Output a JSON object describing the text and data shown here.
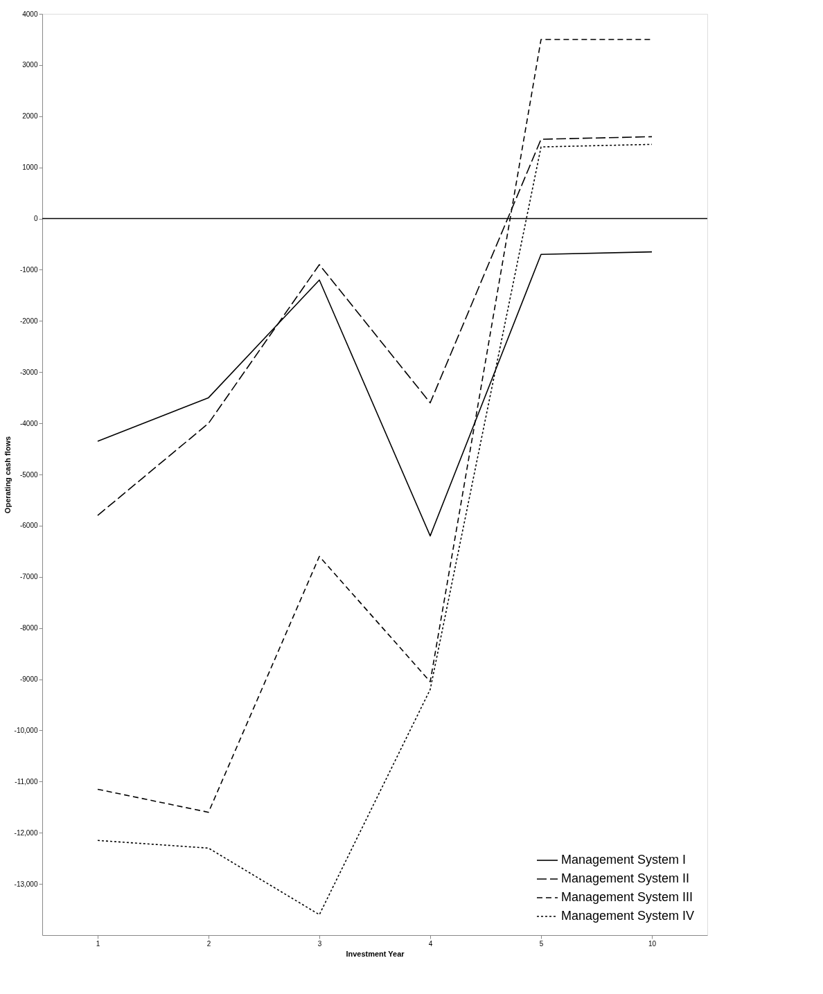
{
  "chart_data": {
    "type": "line",
    "xlabel": "Investment Year",
    "ylabel": "Operating cash flows",
    "categories": [
      "1",
      "2",
      "3",
      "4",
      "5",
      "10"
    ],
    "series": [
      {
        "name": "Management System I",
        "color": "#000000",
        "line_style": "solid",
        "values": [
          -4350,
          -3500,
          -1200,
          -6200,
          -700,
          -650
        ]
      },
      {
        "name": "Management System II",
        "color": "#000000",
        "line_style": "dashed",
        "values": [
          -5800,
          -4000,
          -900,
          -3600,
          1550,
          1600
        ]
      },
      {
        "name": "Management System III",
        "color": "#000000",
        "line_style": "dashed",
        "values": [
          -11150,
          -11600,
          -6600,
          -9050,
          3500,
          3500
        ]
      },
      {
        "name": "Management System IV",
        "color": "#000000",
        "line_style": "dotted",
        "values": [
          -12150,
          -12300,
          -13600,
          -9200,
          1400,
          1450
        ]
      }
    ],
    "ylim": [
      -14000,
      4000
    ],
    "yticks": [
      4000,
      3000,
      2000,
      1000,
      0,
      -1000,
      -2000,
      -3000,
      -4000,
      -5000,
      -6000,
      -7000,
      -8000,
      -9000,
      {
        "value": -10000,
        "label": "-10,000"
      },
      {
        "value": -11000,
        "label": "-11,000"
      },
      {
        "value": -12000,
        "label": "-12,000"
      },
      {
        "value": -13000,
        "label": "-13,000"
      }
    ],
    "ref_lines": [
      {
        "axis": "y",
        "value": 0,
        "color": "#000000",
        "line_style": "solid"
      }
    ],
    "grid": false,
    "legend": "bottom right",
    "marker": "none"
  }
}
